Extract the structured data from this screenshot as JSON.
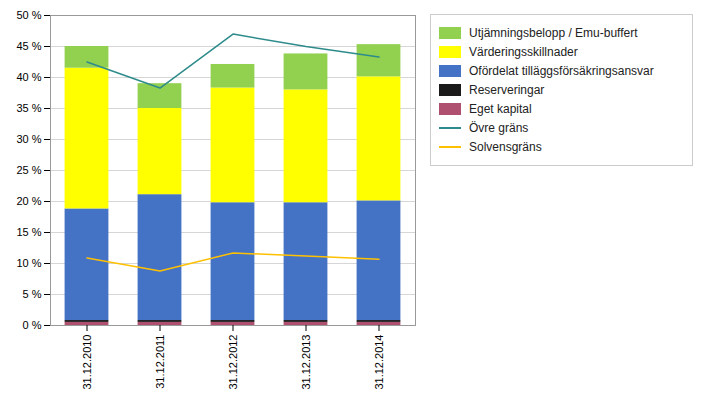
{
  "chart_data": {
    "type": "bar",
    "stacked": true,
    "categories": [
      "31.12.2010",
      "31.12.2011",
      "31.12.2012",
      "31.12.2013",
      "31.12.2014"
    ],
    "series": [
      {
        "name": "Eget kapital",
        "color": "#b05070",
        "values": [
          0.5,
          0.5,
          0.5,
          0.5,
          0.5
        ]
      },
      {
        "name": "Reserveringar",
        "color": "#1a1a1a",
        "values": [
          0.3,
          0.3,
          0.3,
          0.3,
          0.3
        ]
      },
      {
        "name": "Ofördelat tilläggsförsäkringsansvar",
        "color": "#4472c4",
        "values": [
          18.0,
          20.3,
          19.0,
          19.0,
          19.3
        ]
      },
      {
        "name": "Värderingsskillnader",
        "color": "#ffff00",
        "values": [
          22.7,
          13.9,
          18.5,
          18.2,
          20.0
        ]
      },
      {
        "name": "Utjämningsbelopp / Emu-buffert",
        "color": "#92d050",
        "values": [
          3.5,
          4.0,
          3.8,
          5.8,
          5.2
        ]
      },
      {
        "name": "Övre gräns",
        "type": "line",
        "color": "#2e8b8b",
        "values": [
          42.5,
          38.3,
          47.0,
          45.0,
          43.3
        ]
      },
      {
        "name": "Solvensgräns",
        "type": "line",
        "color": "#ffc000",
        "values": [
          10.9,
          8.8,
          11.7,
          11.2,
          10.7
        ]
      }
    ],
    "ylim": [
      0,
      50
    ],
    "yticks": [
      {
        "value": 0,
        "label": "0 %"
      },
      {
        "value": 5,
        "label": "5 %"
      },
      {
        "value": 10,
        "label": "10 %"
      },
      {
        "value": 15,
        "label": "15 %"
      },
      {
        "value": 20,
        "label": "20 %"
      },
      {
        "value": 25,
        "label": "25 %"
      },
      {
        "value": 30,
        "label": "30 %"
      },
      {
        "value": 35,
        "label": "35 %"
      },
      {
        "value": 40,
        "label": "40 %"
      },
      {
        "value": 45,
        "label": "45 %"
      },
      {
        "value": 50,
        "label": "50 %"
      }
    ],
    "grid": true,
    "legend": "right"
  }
}
